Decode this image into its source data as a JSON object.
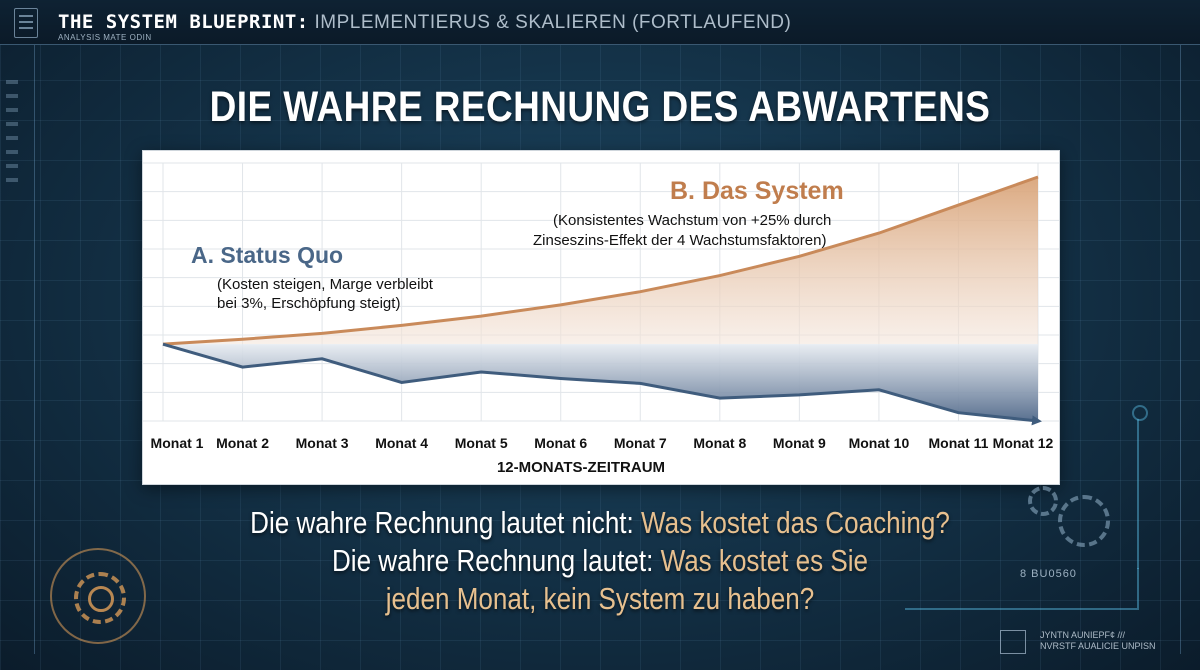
{
  "header": {
    "title_bold": "THE SYSTEM BLUEPRINT:",
    "title_rest": "IMPLEMENTIERUS & SKALIEREN (FORTLAUFEND)",
    "subtitle": "ANALYSIS MATE ODIN"
  },
  "main_title": "DIE WAHRE RECHNUNG DES ABWARTENS",
  "chart_data": {
    "type": "area",
    "categories": [
      "Monat 1",
      "Monat 2",
      "Monat 3",
      "Monat 4",
      "Monat 5",
      "Monat 6",
      "Monat 7",
      "Monat 8",
      "Monat 9",
      "Monat 10",
      "Monat 11",
      "Monat 12"
    ],
    "xlabel": "12-MONATS-ZEITRAUM",
    "ylabel": "",
    "ylim": [
      0,
      100
    ],
    "grid": true,
    "series": [
      {
        "name": "B. Das System",
        "color": "#c98a5a",
        "values": [
          31.5,
          33.5,
          35.9,
          39.2,
          43.0,
          47.6,
          53.0,
          59.6,
          67.5,
          77.0,
          88.5,
          100
        ]
      },
      {
        "name": "A. Status Quo",
        "color": "#4c6580",
        "values": [
          31.5,
          22.1,
          25.5,
          15.8,
          20.1,
          17.4,
          15.4,
          9.4,
          10.7,
          12.8,
          3.4,
          0
        ]
      }
    ],
    "annotations": {
      "system_title": "B. Das System",
      "system_note_1": "(Konsistentes Wachstum von +25% durch",
      "system_note_2": "Zinseszins-Effekt der 4 Wachstumsfaktoren)",
      "status_title": "A. Status Quo",
      "status_note_1": "(Kosten steigen, Marge verbleibt",
      "status_note_2": "bei 3%, Erschöpfung steigt)"
    }
  },
  "message": {
    "line1_white": "Die wahre Rechnung lautet nicht:",
    "line1_highlight": "Was kostet das Coaching?",
    "line2_white": "Die wahre Rechnung lautet:",
    "line2_highlight": "Was kostet es Sie",
    "line3_highlight": "jeden Monat, kein System zu haben?"
  },
  "decor": {
    "code": "8 BU0560",
    "foot_line1": "JYNTN AUNIEPF¢ ///",
    "foot_line2": "NVRSTF AUALICIE UNPISN"
  },
  "colors": {
    "system": "#c98a5a",
    "status_quo": "#4c6580",
    "highlight": "#e7c08f"
  }
}
